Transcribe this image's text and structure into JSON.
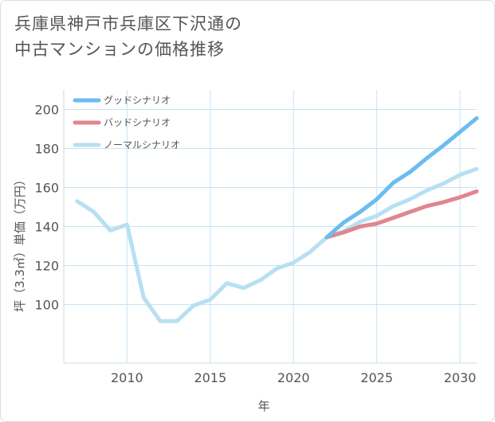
{
  "title_lines": [
    "兵庫県神戸市兵庫区下沢通の",
    "中古マンションの価格推移"
  ],
  "chart_data": {
    "type": "line",
    "xlabel": "年",
    "ylabel": "坪（3.3㎡）単価（万円）",
    "xlim": [
      2006.2,
      2031
    ],
    "ylim": [
      70,
      210
    ],
    "xticks": [
      2010,
      2015,
      2020,
      2025,
      2030
    ],
    "yticks": [
      100,
      120,
      140,
      160,
      180,
      200
    ],
    "grid": true,
    "legend_position": "top-left",
    "series": [
      {
        "name": "グッドシナリオ",
        "color": "#6bbcf0",
        "x": [
          2022,
          2023,
          2024,
          2025,
          2026,
          2027,
          2028,
          2029,
          2030,
          2031
        ],
        "y": [
          134.5,
          142,
          147.5,
          154,
          162.5,
          168,
          175,
          181.5,
          188.5,
          195.5
        ]
      },
      {
        "name": "バッドシナリオ",
        "color": "#e0868f",
        "x": [
          2022,
          2023,
          2024,
          2025,
          2026,
          2027,
          2028,
          2029,
          2030,
          2031
        ],
        "y": [
          134.5,
          137,
          140,
          141.5,
          144.5,
          147.5,
          150.5,
          152.5,
          155,
          158
        ]
      },
      {
        "name": "ノーマルシナリオ",
        "color": "#b7e0f2",
        "x": [
          2007,
          2008,
          2009,
          2010,
          2011,
          2012,
          2013,
          2014,
          2015,
          2016,
          2017,
          2018,
          2019,
          2020,
          2021,
          2022,
          2023,
          2024,
          2025,
          2026,
          2027,
          2028,
          2029,
          2030,
          2031
        ],
        "y": [
          153,
          147.5,
          138,
          141,
          103.5,
          91.5,
          91.5,
          99.5,
          102.5,
          111,
          108.5,
          112.5,
          118.5,
          121.5,
          127,
          134.5,
          137.5,
          142.5,
          145.5,
          150.5,
          154,
          158.5,
          162,
          166.5,
          169.5
        ]
      }
    ]
  }
}
